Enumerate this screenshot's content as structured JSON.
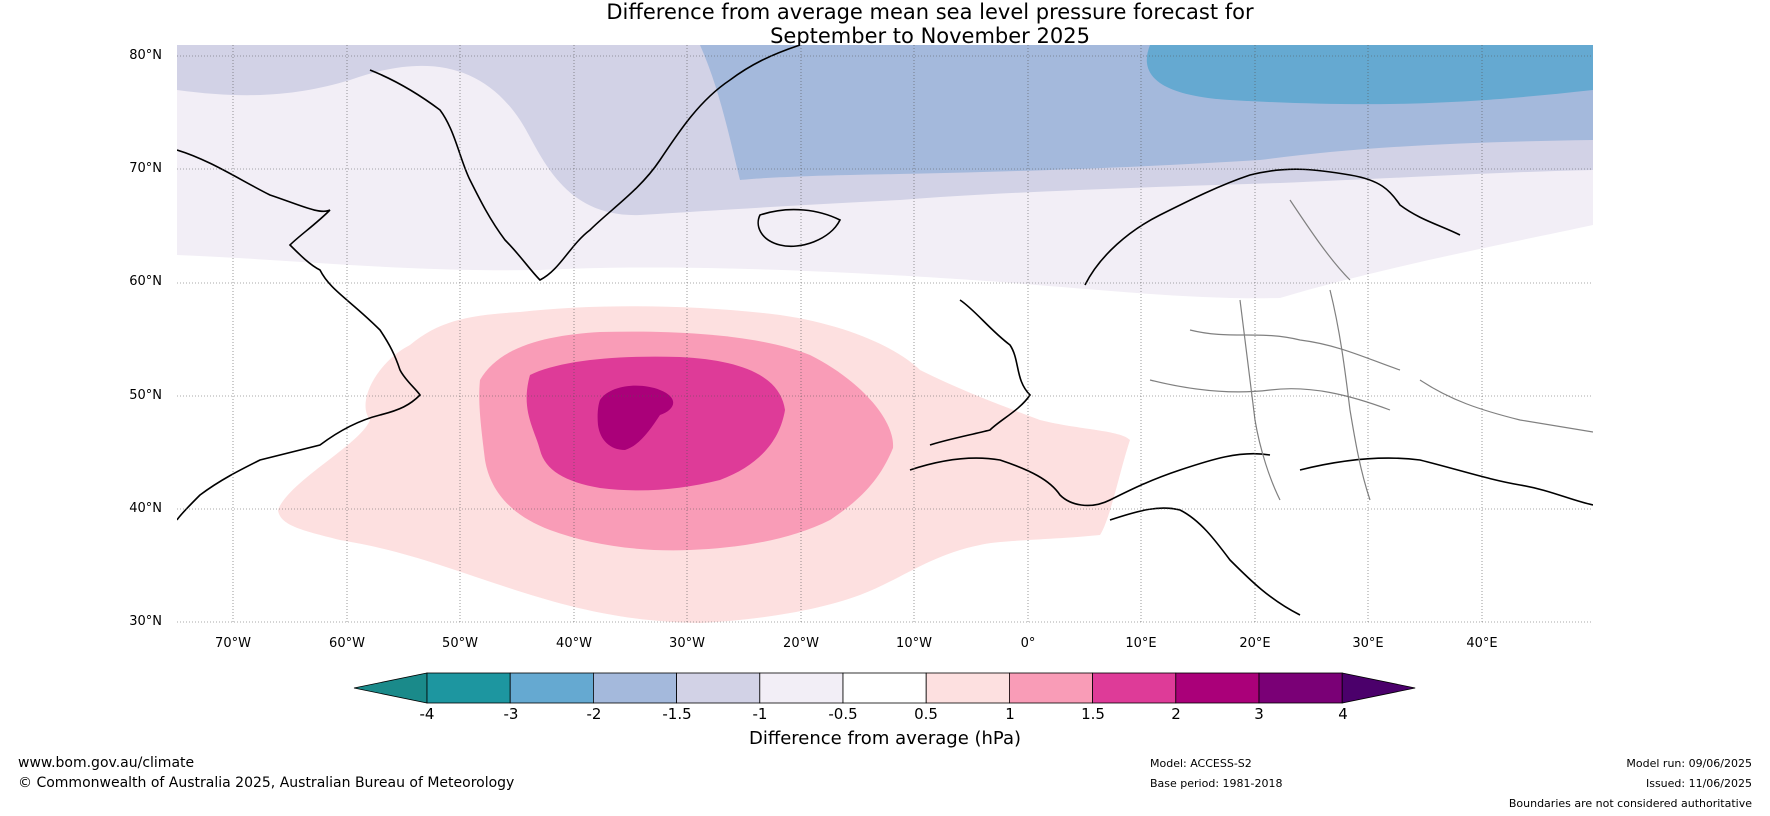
{
  "title": {
    "line1": "Difference from average mean sea level pressure forecast for",
    "line2": "September to November 2025"
  },
  "map": {
    "lat_labels": [
      "80°N",
      "70°N",
      "60°N",
      "50°N",
      "40°N",
      "30°N"
    ],
    "lon_labels": [
      "70°W",
      "60°W",
      "50°W",
      "40°W",
      "30°W",
      "20°W",
      "10°W",
      "0°",
      "10°E",
      "20°E",
      "30°E",
      "40°E"
    ],
    "land_color": "#000000",
    "border_color": "#808080"
  },
  "colorbar": {
    "ticks": [
      "-4",
      "-3",
      "-2",
      "-1.5",
      "-1",
      "-0.5",
      "0.5",
      "1",
      "1.5",
      "2",
      "3",
      "4"
    ],
    "colors": [
      "#1a8a8a",
      "#1d96a0",
      "#65a9d1",
      "#a4b9dc",
      "#d2d2e6",
      "#f2eef6",
      "#ffffff",
      "#fde0e0",
      "#f99cb7",
      "#de3b98",
      "#aa0079",
      "#7a0076",
      "#4b006b"
    ],
    "label": "Difference from average (hPa)"
  },
  "footer": {
    "website": "www.bom.gov.au/climate",
    "copyright": "© Commonwealth of Australia 2025, Australian Bureau of Meteorology",
    "model": "Model: ACCESS-S2",
    "base_period": "Base period: 1981-2018",
    "model_run": "Model run: 09/06/2025",
    "issued": "Issued: 11/06/2025",
    "disclaimer": "Boundaries are not considered authoritative"
  }
}
